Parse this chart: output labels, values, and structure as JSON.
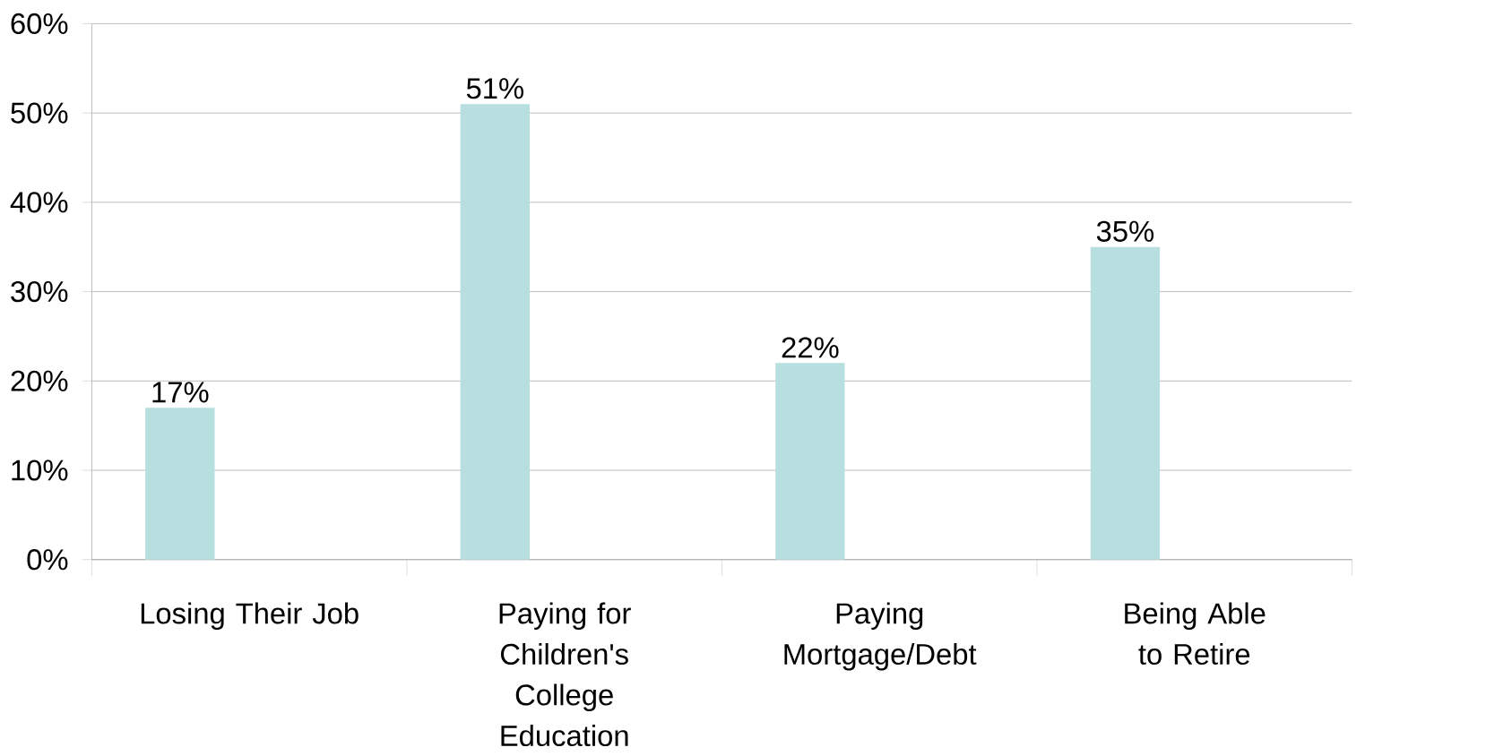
{
  "chart_data": {
    "type": "bar",
    "categories": [
      "Losing Their Job",
      "Paying for Children's College Education",
      "Paying Mortgage/Debt",
      "Being Able to Retire"
    ],
    "values": [
      17,
      51,
      22,
      35
    ],
    "value_labels": [
      "17%",
      "51%",
      "22%",
      "35%"
    ],
    "color": "#b7dfe0",
    "ylim": [
      0,
      60
    ],
    "yticks": [
      {
        "value": 0,
        "label": "0%"
      },
      {
        "value": 10,
        "label": "10%"
      },
      {
        "value": 20,
        "label": "20%"
      },
      {
        "value": 30,
        "label": "30%"
      },
      {
        "value": 40,
        "label": "40%"
      },
      {
        "value": 50,
        "label": "50%"
      },
      {
        "value": 60,
        "label": "60%"
      }
    ],
    "grid": "y"
  }
}
